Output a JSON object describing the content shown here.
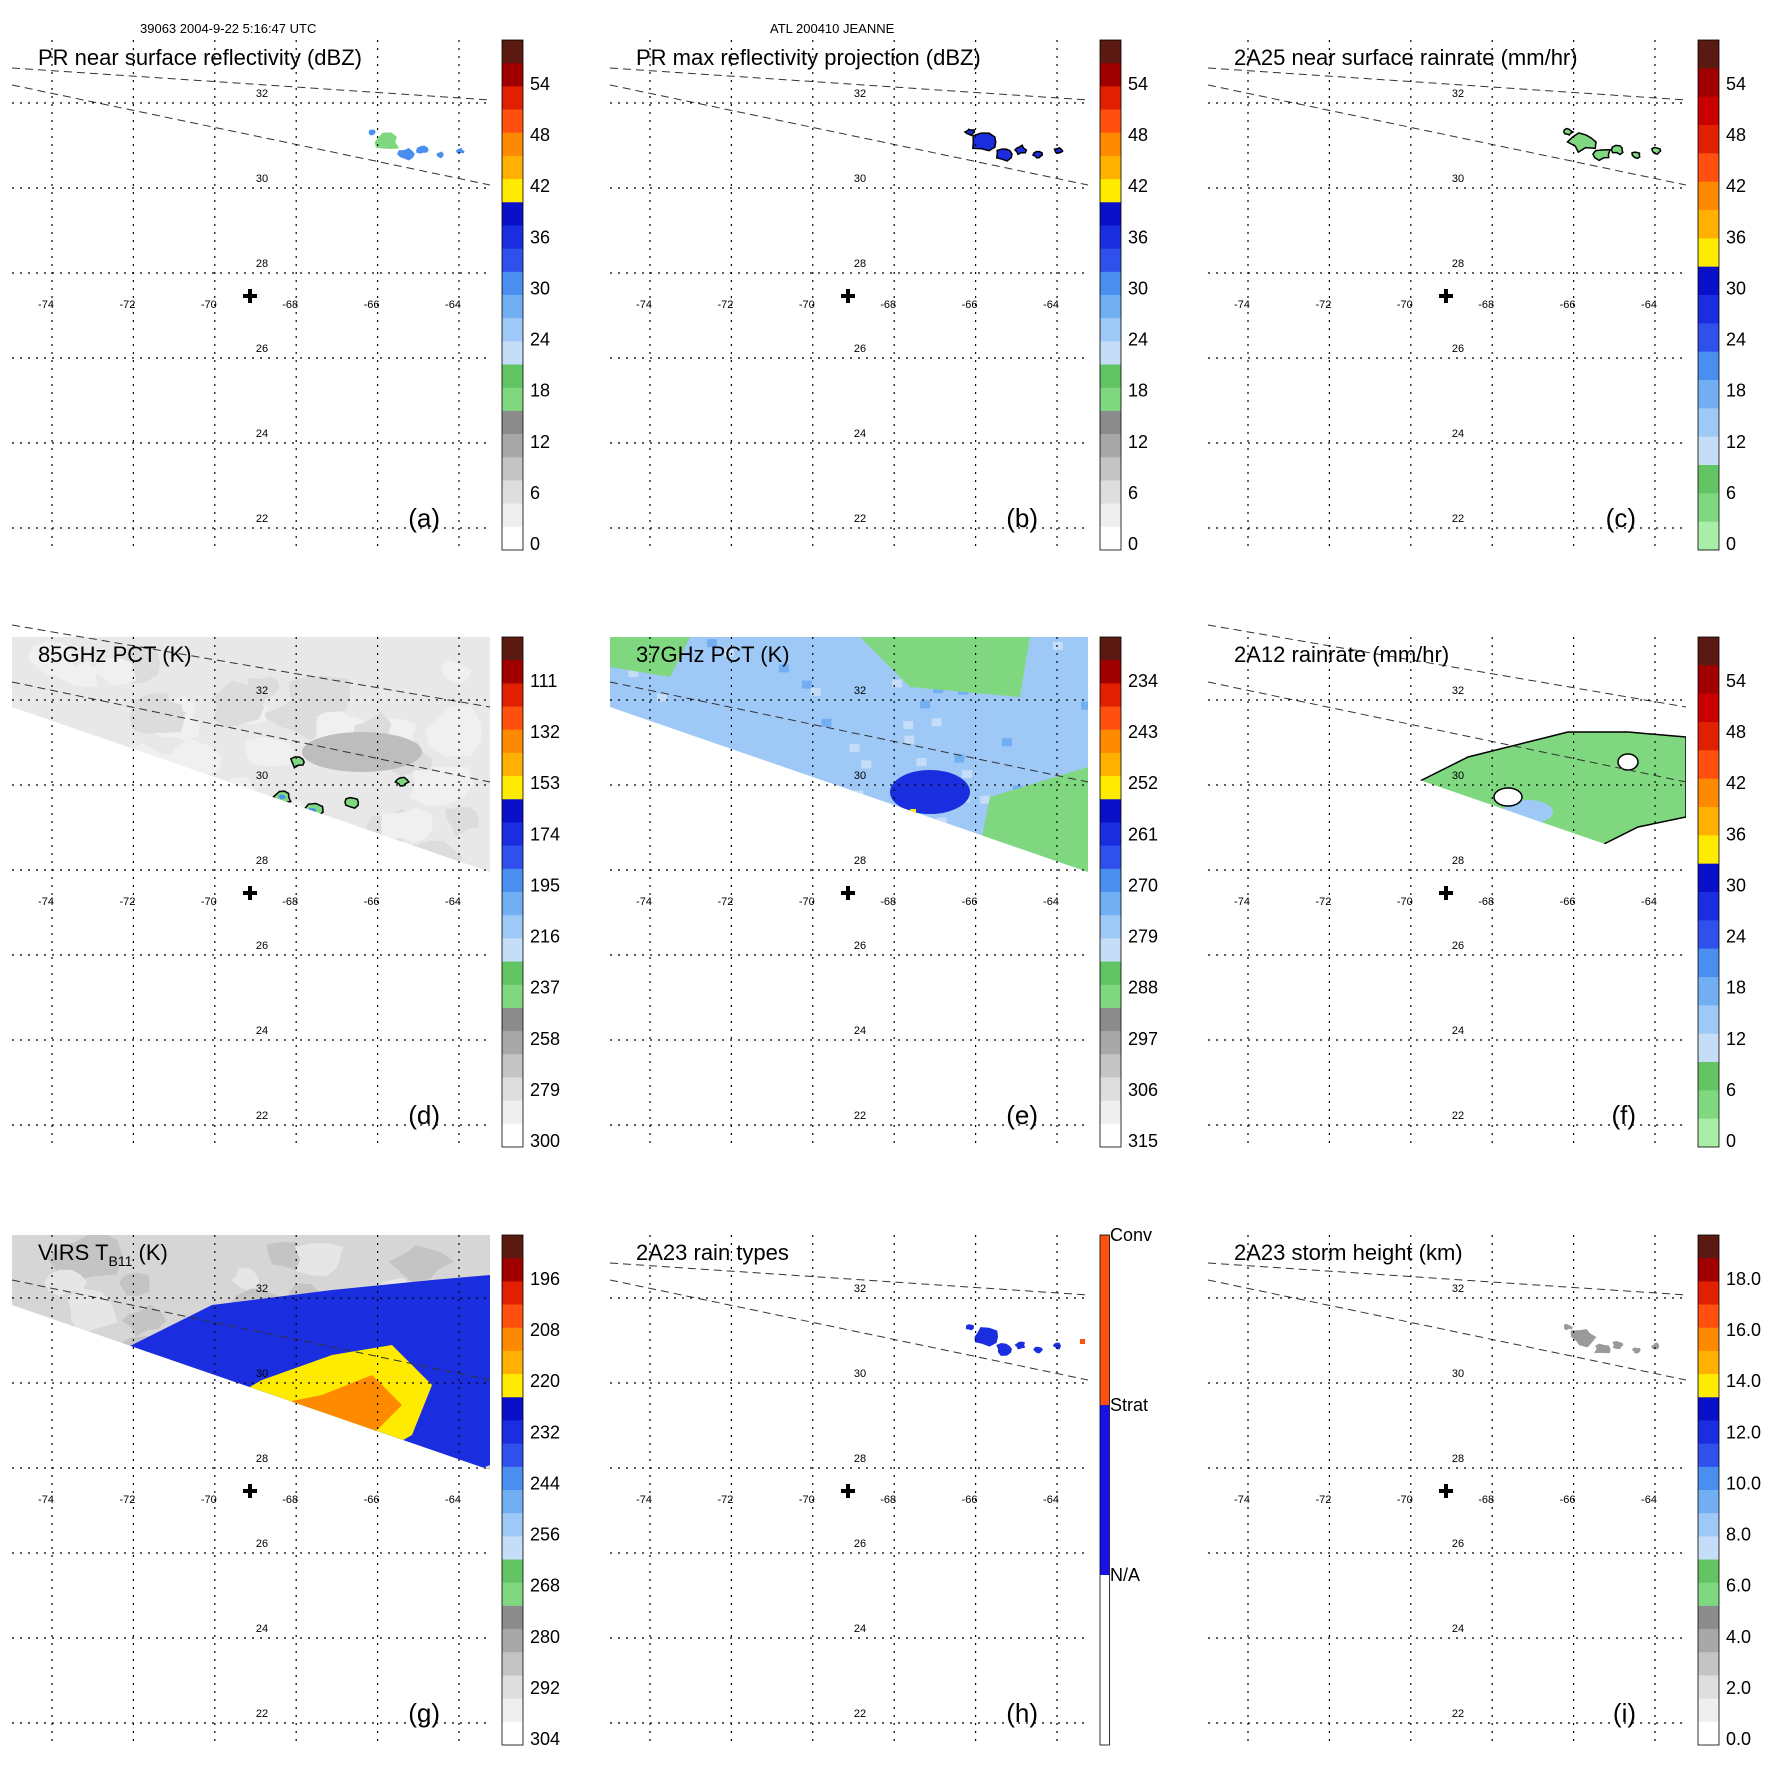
{
  "header": {
    "orbit_info": "39063 2004-9-22 5:16:47 UTC",
    "storm_info": "ATL 200410 JEANNE"
  },
  "colors": {
    "grid": "#000000",
    "swath_edge": "#333333",
    "gray_field": "#d9d9d9",
    "green": "#7fd77f",
    "light_blue": "#9ec8f5",
    "mid_blue": "#4a8ff0",
    "deep_blue": "#1a2ee0",
    "yellow": "#ffeb00",
    "orange": "#ff8a00",
    "red": "#e02000"
  },
  "chart_data": [
    {
      "id": "a",
      "type": "heatmap",
      "title": "PR near surface reflectivity (dBZ)",
      "panel_label": "(a)",
      "colorbar": {
        "ticks": [
          "54",
          "48",
          "42",
          "36",
          "30",
          "24",
          "18",
          "12",
          "6",
          "0"
        ]
      },
      "xticks": [
        "-74",
        "-72",
        "-70",
        "-68",
        "-66",
        "-64"
      ],
      "yticks": [
        "32",
        "30",
        "28",
        "26",
        "24",
        "22"
      ],
      "storm_center": {
        "lon": -69.5,
        "lat": 26.9
      },
      "field": "pr_small"
    },
    {
      "id": "b",
      "type": "heatmap",
      "title": "PR max reflectivity projection (dBZ)",
      "panel_label": "(b)",
      "colorbar": {
        "ticks": [
          "54",
          "48",
          "42",
          "36",
          "30",
          "24",
          "18",
          "12",
          "6",
          "0"
        ]
      },
      "xticks": [
        "-74",
        "-72",
        "-70",
        "-68",
        "-66",
        "-64"
      ],
      "yticks": [
        "32",
        "30",
        "28",
        "26",
        "24",
        "22"
      ],
      "storm_center": {
        "lon": -69.5,
        "lat": 26.9
      },
      "field": "pr_blue"
    },
    {
      "id": "c",
      "type": "heatmap",
      "title": "2A25 near surface rainrate (mm/hr)",
      "panel_label": "(c)",
      "colorbar": {
        "ticks": [
          "54",
          "48",
          "42",
          "36",
          "30",
          "24",
          "18",
          "12",
          "6",
          "0"
        ]
      },
      "xticks": [
        "-74",
        "-72",
        "-70",
        "-68",
        "-66",
        "-64"
      ],
      "yticks": [
        "32",
        "30",
        "28",
        "26",
        "24",
        "22"
      ],
      "storm_center": {
        "lon": -69.5,
        "lat": 26.9
      },
      "field": "pr_green"
    },
    {
      "id": "d",
      "type": "heatmap",
      "title": "85GHz PCT (K)",
      "panel_label": "(d)",
      "colorbar": {
        "ticks": [
          "111",
          "132",
          "153",
          "174",
          "195",
          "216",
          "237",
          "258",
          "279",
          "300"
        ]
      },
      "xticks": [
        "-74",
        "-72",
        "-70",
        "-68",
        "-66",
        "-64"
      ],
      "yticks": [
        "32",
        "30",
        "28",
        "26",
        "24",
        "22"
      ],
      "storm_center": {
        "lon": -69.5,
        "lat": 26.9
      },
      "field": "tmi85"
    },
    {
      "id": "e",
      "type": "heatmap",
      "title": "37GHz PCT (K)",
      "panel_label": "(e)",
      "colorbar": {
        "ticks": [
          "234",
          "243",
          "252",
          "261",
          "270",
          "279",
          "288",
          "297",
          "306",
          "315"
        ]
      },
      "xticks": [
        "-74",
        "-72",
        "-70",
        "-68",
        "-66",
        "-64"
      ],
      "yticks": [
        "32",
        "30",
        "28",
        "26",
        "24",
        "22"
      ],
      "storm_center": {
        "lon": -69.5,
        "lat": 26.9
      },
      "field": "tmi37"
    },
    {
      "id": "f",
      "type": "heatmap",
      "title": "2A12 rainrate (mm/hr)",
      "panel_label": "(f)",
      "colorbar": {
        "ticks": [
          "54",
          "48",
          "42",
          "36",
          "30",
          "24",
          "18",
          "12",
          "6",
          "0"
        ]
      },
      "xticks": [
        "-74",
        "-72",
        "-70",
        "-68",
        "-66",
        "-64"
      ],
      "yticks": [
        "32",
        "30",
        "28",
        "26",
        "24",
        "22"
      ],
      "storm_center": {
        "lon": -69.5,
        "lat": 26.9
      },
      "field": "rain2a12"
    },
    {
      "id": "g",
      "type": "heatmap",
      "title": "VIRS T",
      "title_sub": "B11",
      "title_suffix": " (K)",
      "panel_label": "(g)",
      "colorbar": {
        "ticks": [
          "196",
          "208",
          "220",
          "232",
          "244",
          "256",
          "268",
          "280",
          "292",
          "304"
        ]
      },
      "xticks": [
        "-74",
        "-72",
        "-70",
        "-68",
        "-66",
        "-64"
      ],
      "yticks": [
        "32",
        "30",
        "28",
        "26",
        "24",
        "22"
      ],
      "storm_center": {
        "lon": -69.5,
        "lat": 26.9
      },
      "field": "virs"
    },
    {
      "id": "h",
      "type": "heatmap",
      "title": "2A23 rain types",
      "panel_label": "(h)",
      "colorbar": {
        "ticks": [
          "Conv",
          "Strat",
          "N/A"
        ]
      },
      "xticks": [
        "-74",
        "-72",
        "-70",
        "-68",
        "-66",
        "-64"
      ],
      "yticks": [
        "32",
        "30",
        "28",
        "26",
        "24",
        "22"
      ],
      "storm_center": {
        "lon": -69.5,
        "lat": 26.9
      },
      "field": "raintype"
    },
    {
      "id": "i",
      "type": "heatmap",
      "title": "2A23 storm height (km)",
      "panel_label": "(i)",
      "colorbar": {
        "ticks": [
          "18.0",
          "16.0",
          "14.0",
          "12.0",
          "10.0",
          "8.0",
          "6.0",
          "4.0",
          "2.0",
          "0.0"
        ]
      },
      "xticks": [
        "-74",
        "-72",
        "-70",
        "-68",
        "-66",
        "-64"
      ],
      "yticks": [
        "32",
        "30",
        "28",
        "26",
        "24",
        "22"
      ],
      "storm_center": {
        "lon": -69.5,
        "lat": 26.9
      },
      "field": "height"
    }
  ]
}
